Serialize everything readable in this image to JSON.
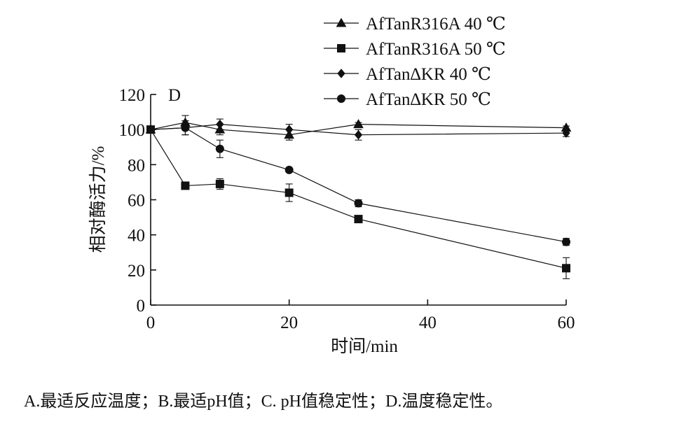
{
  "chart_data": {
    "type": "line",
    "panel_label": "D",
    "xlabel": "时间/min",
    "ylabel": "相对酶活力/%",
    "xlim": [
      0,
      60
    ],
    "ylim": [
      0,
      120
    ],
    "x_ticks": [
      0,
      20,
      40,
      60
    ],
    "y_ticks": [
      0,
      20,
      40,
      60,
      80,
      100,
      120
    ],
    "grid": false,
    "legend_position": "top-right",
    "series": [
      {
        "name": "AfTanR316A 40 ℃",
        "marker": "triangle",
        "x": [
          0,
          5,
          10,
          20,
          30,
          60
        ],
        "y": [
          100,
          104,
          100,
          97,
          103,
          101
        ],
        "err": [
          1,
          4,
          3,
          3,
          1,
          1
        ]
      },
      {
        "name": "AfTanR316A 50 ℃",
        "marker": "square",
        "x": [
          0,
          5,
          10,
          20,
          30,
          60
        ],
        "y": [
          100,
          68,
          69,
          64,
          49,
          21
        ],
        "err": [
          1,
          2,
          3,
          5,
          2,
          6
        ]
      },
      {
        "name": "AfTan∆KR 40 ℃",
        "marker": "diamond",
        "x": [
          0,
          5,
          10,
          20,
          30,
          60
        ],
        "y": [
          100,
          101,
          103,
          100,
          97,
          98
        ],
        "err": [
          1,
          4,
          3,
          3,
          3,
          2
        ]
      },
      {
        "name": "AfTan∆KR 50 ℃",
        "marker": "circle",
        "x": [
          0,
          5,
          10,
          20,
          30,
          60
        ],
        "y": [
          100,
          101,
          89,
          77,
          58,
          36
        ],
        "err": [
          1,
          4,
          5,
          1,
          2,
          2
        ]
      }
    ]
  },
  "caption": "A.最适反应温度；B.最适pH值；C. pH值稳定性；D.温度稳定性。"
}
